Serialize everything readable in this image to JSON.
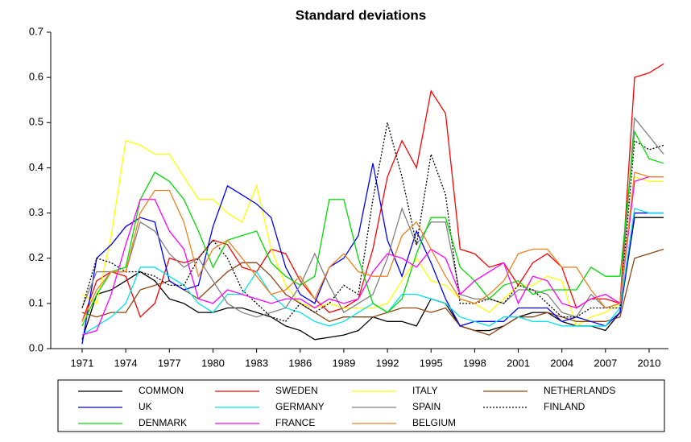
{
  "chart_data": {
    "type": "line",
    "title": "Standard deviations",
    "x": [
      1971,
      1972,
      1973,
      1974,
      1975,
      1976,
      1977,
      1978,
      1979,
      1980,
      1981,
      1982,
      1983,
      1984,
      1985,
      1986,
      1987,
      1988,
      1989,
      1990,
      1991,
      1992,
      1993,
      1994,
      1995,
      1996,
      1997,
      1998,
      1999,
      2000,
      2001,
      2002,
      2003,
      2004,
      2005,
      2006,
      2007,
      2008,
      2009,
      2010,
      2011
    ],
    "xlim": [
      1968.84,
      2011.33
    ],
    "xticks": [
      1971,
      1974,
      1977,
      1980,
      1983,
      1986,
      1989,
      1992,
      1995,
      1998,
      2001,
      2004,
      2007,
      2010
    ],
    "ylim": [
      0,
      0.7
    ],
    "yticks": [
      {
        "value": 0,
        "label": "0.0"
      },
      0.1,
      0.2,
      0.3,
      0.4,
      0.5,
      0.6,
      0.7
    ],
    "series": [
      {
        "name": "COMMON",
        "color": "#000000",
        "line_style": "solid",
        "values": [
          0.02,
          0.12,
          0.13,
          0.15,
          0.17,
          0.15,
          0.11,
          0.1,
          0.08,
          0.08,
          0.09,
          0.09,
          0.08,
          0.07,
          0.05,
          0.04,
          0.02,
          0.025,
          0.03,
          0.04,
          0.07,
          0.06,
          0.06,
          0.05,
          0.11,
          0.1,
          0.05,
          0.04,
          0.04,
          0.05,
          0.07,
          0.08,
          0.08,
          0.06,
          0.05,
          0.05,
          0.04,
          0.08,
          0.29,
          0.29,
          0.29
        ]
      },
      {
        "name": "SWEDEN",
        "color": "#ff0000",
        "line_style": "solid",
        "values": [
          0.06,
          0.15,
          0.17,
          0.16,
          0.07,
          0.1,
          0.2,
          0.19,
          0.2,
          0.24,
          0.23,
          0.18,
          0.17,
          0.22,
          0.21,
          0.15,
          0.11,
          0.08,
          0.09,
          0.11,
          0.22,
          0.38,
          0.46,
          0.4,
          0.57,
          0.52,
          0.22,
          0.21,
          0.18,
          0.19,
          0.14,
          0.19,
          0.21,
          0.18,
          0.09,
          0.11,
          0.11,
          0.1,
          0.6,
          0.61,
          0.63
        ]
      },
      {
        "name": "ITALY",
        "color": "#ffff00",
        "line_style": "solid",
        "values": [
          0.12,
          0.1,
          0.25,
          0.46,
          0.45,
          0.43,
          0.43,
          0.38,
          0.33,
          0.33,
          0.3,
          0.28,
          0.36,
          0.22,
          0.14,
          0.1,
          0.09,
          0.1,
          0.09,
          0.09,
          0.09,
          0.1,
          0.15,
          0.2,
          0.15,
          0.14,
          0.11,
          0.1,
          0.08,
          0.11,
          0.14,
          0.14,
          0.16,
          0.15,
          0.05,
          0.07,
          0.08,
          0.1,
          0.38,
          0.37,
          0.37
        ]
      },
      {
        "name": "NETHERLANDS",
        "color": "#8b4513",
        "line_style": "solid",
        "values": [
          0.08,
          0.07,
          0.08,
          0.08,
          0.13,
          0.14,
          0.15,
          0.13,
          0.11,
          0.14,
          0.17,
          0.19,
          0.19,
          0.16,
          0.12,
          0.1,
          0.08,
          0.06,
          0.07,
          0.07,
          0.07,
          0.08,
          0.09,
          0.09,
          0.08,
          0.09,
          0.05,
          0.04,
          0.03,
          0.05,
          0.07,
          0.07,
          0.08,
          0.07,
          0.06,
          0.06,
          0.06,
          0.07,
          0.2,
          0.21,
          0.22
        ]
      },
      {
        "name": "UK",
        "color": "#0000ff",
        "line_style": "solid",
        "values": [
          0.01,
          0.2,
          0.23,
          0.27,
          0.29,
          0.28,
          0.15,
          0.13,
          0.14,
          0.27,
          0.36,
          0.34,
          0.32,
          0.29,
          0.18,
          0.12,
          0.1,
          0.18,
          0.2,
          0.25,
          0.41,
          0.24,
          0.16,
          0.26,
          0.19,
          0.11,
          0.05,
          0.06,
          0.06,
          0.06,
          0.09,
          0.09,
          0.09,
          0.06,
          0.07,
          0.06,
          0.05,
          0.08,
          0.3,
          0.3,
          0.3
        ]
      },
      {
        "name": "GERMANY",
        "color": "#00e5ee",
        "line_style": "solid",
        "values": [
          0.03,
          0.05,
          0.07,
          0.1,
          0.18,
          0.18,
          0.16,
          0.14,
          0.1,
          0.08,
          0.12,
          0.12,
          0.17,
          0.12,
          0.09,
          0.08,
          0.06,
          0.05,
          0.06,
          0.08,
          0.1,
          0.08,
          0.12,
          0.12,
          0.11,
          0.1,
          0.07,
          0.06,
          0.05,
          0.07,
          0.07,
          0.06,
          0.06,
          0.05,
          0.05,
          0.05,
          0.05,
          0.09,
          0.31,
          0.3,
          0.3
        ]
      },
      {
        "name": "SPAIN",
        "color": "#808080",
        "line_style": "solid",
        "values": [
          0.09,
          0.17,
          0.17,
          0.17,
          0.28,
          0.26,
          0.21,
          0.18,
          0.2,
          0.15,
          0.1,
          0.08,
          0.07,
          0.08,
          0.09,
          0.14,
          0.21,
          0.14,
          0.08,
          0.1,
          0.12,
          0.2,
          0.31,
          0.23,
          0.28,
          0.28,
          0.12,
          0.11,
          0.11,
          0.1,
          0.13,
          0.13,
          0.12,
          0.08,
          0.07,
          0.12,
          0.09,
          0.1,
          0.51,
          0.47,
          0.43
        ]
      },
      {
        "name": "FINLAND",
        "color": "#000000",
        "line_style": "dotted",
        "values": [
          0.09,
          0.2,
          0.19,
          0.17,
          0.17,
          0.16,
          0.14,
          0.14,
          0.2,
          0.24,
          0.2,
          0.13,
          0.1,
          0.07,
          0.06,
          0.1,
          0.08,
          0.1,
          0.14,
          0.12,
          0.33,
          0.5,
          0.38,
          0.23,
          0.43,
          0.34,
          0.1,
          0.1,
          0.11,
          0.1,
          0.14,
          0.13,
          0.1,
          0.07,
          0.07,
          0.09,
          0.09,
          0.09,
          0.46,
          0.44,
          0.45
        ]
      },
      {
        "name": "DENMARK",
        "color": "#00dd00",
        "line_style": "solid",
        "values": [
          0.05,
          0.12,
          0.17,
          0.18,
          0.33,
          0.39,
          0.37,
          0.33,
          0.26,
          0.18,
          0.24,
          0.25,
          0.26,
          0.19,
          0.16,
          0.14,
          0.16,
          0.33,
          0.33,
          0.2,
          0.1,
          0.08,
          0.11,
          0.21,
          0.29,
          0.29,
          0.18,
          0.15,
          0.11,
          0.14,
          0.15,
          0.12,
          0.13,
          0.13,
          0.13,
          0.18,
          0.16,
          0.16,
          0.48,
          0.42,
          0.41
        ]
      },
      {
        "name": "FRANCE",
        "color": "#ff00ff",
        "line_style": "solid",
        "values": [
          0.03,
          0.04,
          0.12,
          0.23,
          0.33,
          0.33,
          0.26,
          0.22,
          0.11,
          0.1,
          0.13,
          0.12,
          0.11,
          0.1,
          0.11,
          0.11,
          0.09,
          0.11,
          0.1,
          0.11,
          0.17,
          0.21,
          0.2,
          0.18,
          0.22,
          0.2,
          0.12,
          0.15,
          0.17,
          0.19,
          0.1,
          0.16,
          0.15,
          0.1,
          0.09,
          0.11,
          0.12,
          0.1,
          0.37,
          0.38,
          0.38
        ]
      },
      {
        "name": "BELGIUM",
        "color": "#f08020",
        "line_style": "solid",
        "values": [
          0.06,
          0.13,
          0.17,
          0.17,
          0.3,
          0.35,
          0.35,
          0.28,
          0.16,
          0.22,
          0.24,
          0.2,
          0.16,
          0.12,
          0.13,
          0.16,
          0.11,
          0.18,
          0.21,
          0.17,
          0.16,
          0.16,
          0.25,
          0.28,
          0.22,
          0.16,
          0.11,
          0.1,
          0.12,
          0.15,
          0.21,
          0.22,
          0.22,
          0.18,
          0.18,
          0.13,
          0.09,
          0.1,
          0.39,
          0.38,
          0.38
        ]
      }
    ]
  }
}
